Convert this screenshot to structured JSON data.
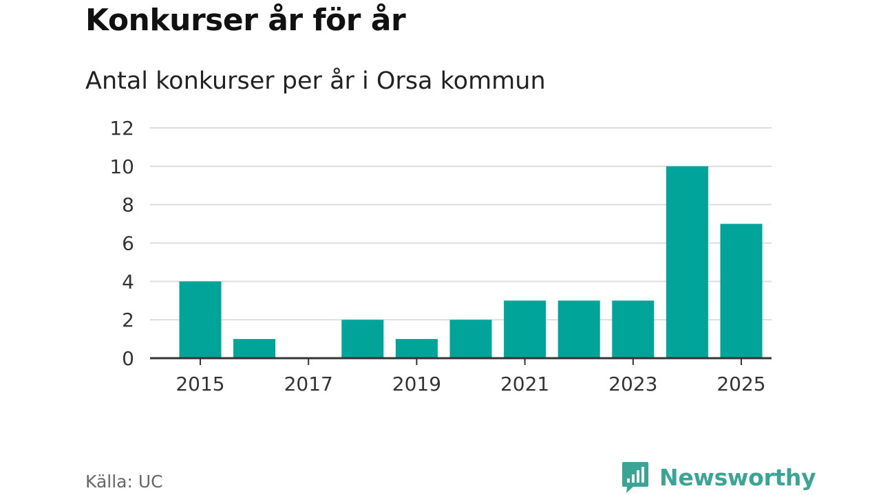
{
  "chart_data": {
    "type": "bar",
    "title": "Konkurser år för år",
    "subtitle": "Antal konkurser per år i Orsa kommun",
    "categories": [
      "2015",
      "2016",
      "2017",
      "2018",
      "2019",
      "2020",
      "2021",
      "2022",
      "2023",
      "2024",
      "2025"
    ],
    "values": [
      4,
      1,
      0,
      2,
      1,
      2,
      3,
      3,
      3,
      10,
      7
    ],
    "x_tick_labels": [
      "2015",
      "2017",
      "2019",
      "2021",
      "2023",
      "2025"
    ],
    "y_ticks": [
      0,
      2,
      4,
      6,
      8,
      10,
      12
    ],
    "ylim": [
      0,
      12
    ],
    "xlabel": "",
    "ylabel": "",
    "grid": true,
    "bar_color": "#00a499"
  },
  "footer": {
    "source": "Källa: UC",
    "brand": "Newsworthy",
    "brand_color": "#3aa597",
    "brand_icon": "newsworthy-logo-icon"
  }
}
